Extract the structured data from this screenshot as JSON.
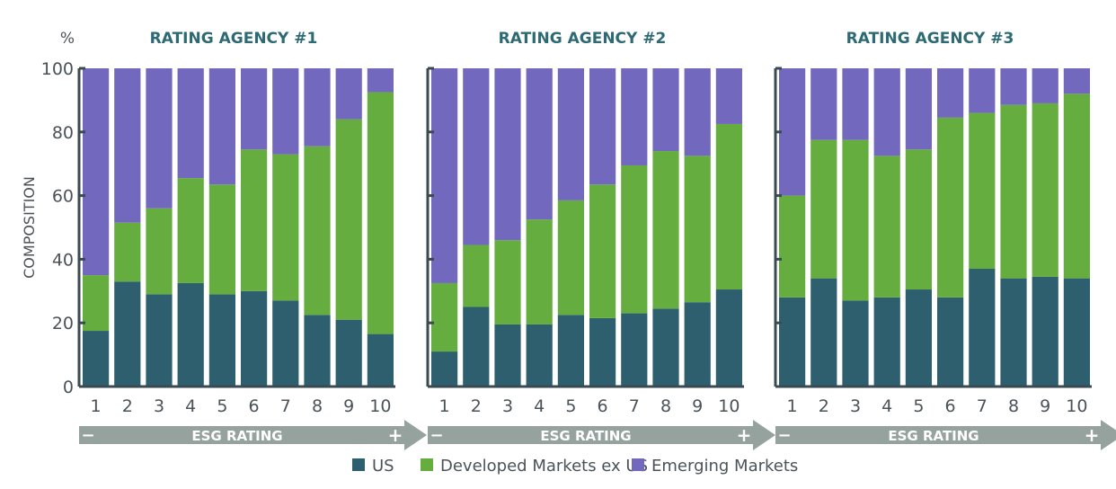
{
  "colors": {
    "us": "#2d5f6e",
    "dev": "#66ad3f",
    "em": "#7268bd",
    "axis": "#3a4a52",
    "title": "#2d6a73",
    "arrow": "#96a29d",
    "text": "#4a5358"
  },
  "ylabel": "COMPOSITION",
  "yunit": "%",
  "arrow_label": "ESG RATING",
  "arrow_minus": "−",
  "arrow_plus": "+",
  "legend": [
    "US",
    "Developed Markets ex US",
    "Emerging Markets"
  ],
  "chart_data": [
    {
      "type": "bar",
      "stacked": true,
      "title": "RATING AGENCY #1",
      "xlabel": "ESG RATING",
      "ylabel": "COMPOSITION",
      "ylim": [
        0,
        100
      ],
      "yticks": [
        0,
        20,
        40,
        60,
        80,
        100
      ],
      "categories": [
        "1",
        "2",
        "3",
        "4",
        "5",
        "6",
        "7",
        "8",
        "9",
        "10"
      ],
      "series": [
        {
          "name": "US",
          "values": [
            17.5,
            33,
            29,
            32.5,
            29,
            30,
            27,
            22.5,
            21,
            16.5
          ]
        },
        {
          "name": "Developed Markets ex US",
          "values": [
            17.5,
            18.5,
            27,
            33,
            34.5,
            44.5,
            46,
            53,
            63,
            76
          ]
        },
        {
          "name": "Emerging Markets",
          "values": [
            65,
            48.5,
            44,
            34.5,
            36.5,
            25.5,
            27,
            24.5,
            16,
            7.5
          ]
        }
      ]
    },
    {
      "type": "bar",
      "stacked": true,
      "title": "RATING AGENCY #2",
      "xlabel": "ESG RATING",
      "ylabel": "COMPOSITION",
      "ylim": [
        0,
        100
      ],
      "categories": [
        "1",
        "2",
        "3",
        "4",
        "5",
        "6",
        "7",
        "8",
        "9",
        "10"
      ],
      "series": [
        {
          "name": "US",
          "values": [
            11,
            25,
            19.5,
            19.5,
            22.5,
            21.5,
            23,
            24.5,
            26.5,
            30.5
          ]
        },
        {
          "name": "Developed Markets ex US",
          "values": [
            21.5,
            19.5,
            26.5,
            33,
            36,
            42,
            46.5,
            49.5,
            46,
            52
          ]
        },
        {
          "name": "Emerging Markets",
          "values": [
            67.5,
            55.5,
            54,
            47.5,
            41.5,
            36.5,
            30.5,
            26,
            27.5,
            17.5
          ]
        }
      ]
    },
    {
      "type": "bar",
      "stacked": true,
      "title": "RATING AGENCY #3",
      "xlabel": "ESG RATING",
      "ylabel": "COMPOSITION",
      "ylim": [
        0,
        100
      ],
      "categories": [
        "1",
        "2",
        "3",
        "4",
        "5",
        "6",
        "7",
        "8",
        "9",
        "10"
      ],
      "series": [
        {
          "name": "US",
          "values": [
            28,
            34,
            27,
            28,
            30.5,
            28,
            37,
            34,
            34.5,
            34
          ]
        },
        {
          "name": "Developed Markets ex US",
          "values": [
            32,
            43.5,
            50.5,
            44.5,
            44,
            56.5,
            49,
            54.5,
            54.5,
            58
          ]
        },
        {
          "name": "Emerging Markets",
          "values": [
            40,
            22.5,
            22.5,
            27.5,
            25.5,
            15.5,
            14,
            11.5,
            11,
            8
          ]
        }
      ]
    }
  ]
}
